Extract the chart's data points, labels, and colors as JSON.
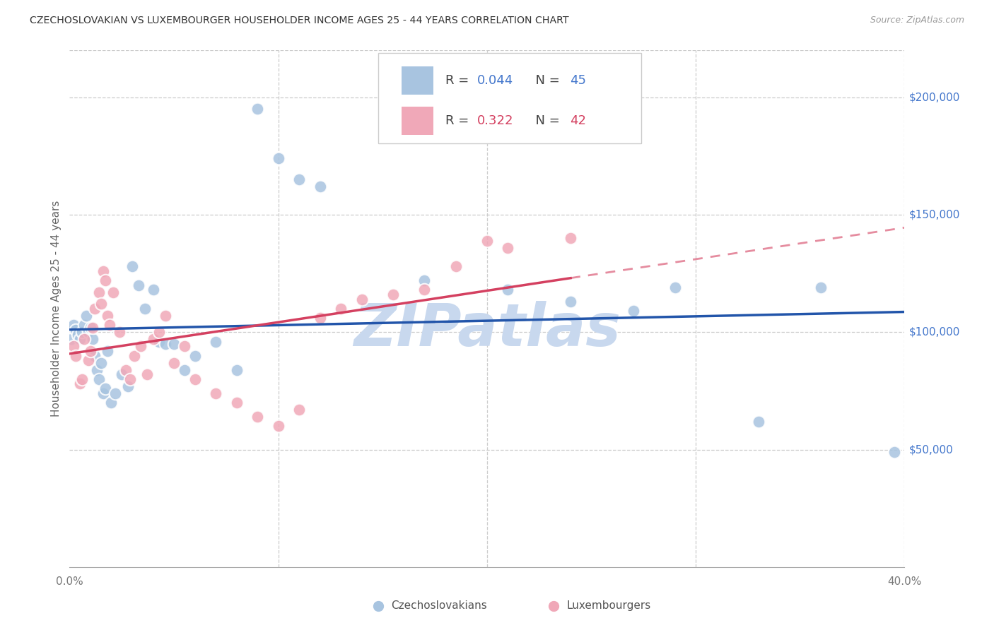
{
  "title": "CZECHOSLOVAKIAN VS LUXEMBOURGER HOUSEHOLDER INCOME AGES 25 - 44 YEARS CORRELATION CHART",
  "source": "Source: ZipAtlas.com",
  "ylabel": "Householder Income Ages 25 - 44 years",
  "xlim": [
    0.0,
    0.4
  ],
  "ylim": [
    0,
    220000
  ],
  "blue_color": "#a8c4e0",
  "pink_color": "#f0a8b8",
  "blue_line_color": "#2255aa",
  "pink_line_color": "#d44060",
  "right_tick_color": "#4477cc",
  "background_color": "#ffffff",
  "watermark_color": "#c8d8ee",
  "grid_color": "#cccccc",
  "czech_x": [
    0.001,
    0.002,
    0.003,
    0.004,
    0.005,
    0.006,
    0.007,
    0.008,
    0.009,
    0.01,
    0.011,
    0.012,
    0.013,
    0.014,
    0.015,
    0.016,
    0.017,
    0.018,
    0.02,
    0.022,
    0.025,
    0.028,
    0.03,
    0.033,
    0.036,
    0.04,
    0.043,
    0.046,
    0.05,
    0.055,
    0.06,
    0.07,
    0.08,
    0.09,
    0.1,
    0.11,
    0.12,
    0.17,
    0.21,
    0.24,
    0.27,
    0.29,
    0.33,
    0.36,
    0.395
  ],
  "czech_y": [
    97000,
    103000,
    101000,
    99000,
    97000,
    100000,
    103000,
    107000,
    100000,
    102000,
    97000,
    90000,
    84000,
    80000,
    87000,
    74000,
    76000,
    92000,
    70000,
    74000,
    82000,
    77000,
    128000,
    120000,
    110000,
    118000,
    96000,
    95000,
    95000,
    84000,
    90000,
    96000,
    84000,
    195000,
    174000,
    165000,
    162000,
    122000,
    118000,
    113000,
    109000,
    119000,
    62000,
    119000,
    49000
  ],
  "lux_x": [
    0.002,
    0.003,
    0.005,
    0.006,
    0.007,
    0.009,
    0.01,
    0.011,
    0.012,
    0.014,
    0.015,
    0.016,
    0.017,
    0.018,
    0.019,
    0.021,
    0.024,
    0.027,
    0.029,
    0.031,
    0.034,
    0.037,
    0.04,
    0.043,
    0.046,
    0.05,
    0.055,
    0.06,
    0.07,
    0.08,
    0.09,
    0.1,
    0.11,
    0.12,
    0.13,
    0.14,
    0.155,
    0.17,
    0.185,
    0.2,
    0.21,
    0.24
  ],
  "lux_y": [
    94000,
    90000,
    78000,
    80000,
    97000,
    88000,
    92000,
    102000,
    110000,
    117000,
    112000,
    126000,
    122000,
    107000,
    103000,
    117000,
    100000,
    84000,
    80000,
    90000,
    94000,
    82000,
    97000,
    100000,
    107000,
    87000,
    94000,
    80000,
    74000,
    70000,
    64000,
    60000,
    67000,
    106000,
    110000,
    114000,
    116000,
    118000,
    128000,
    139000,
    136000,
    140000
  ]
}
